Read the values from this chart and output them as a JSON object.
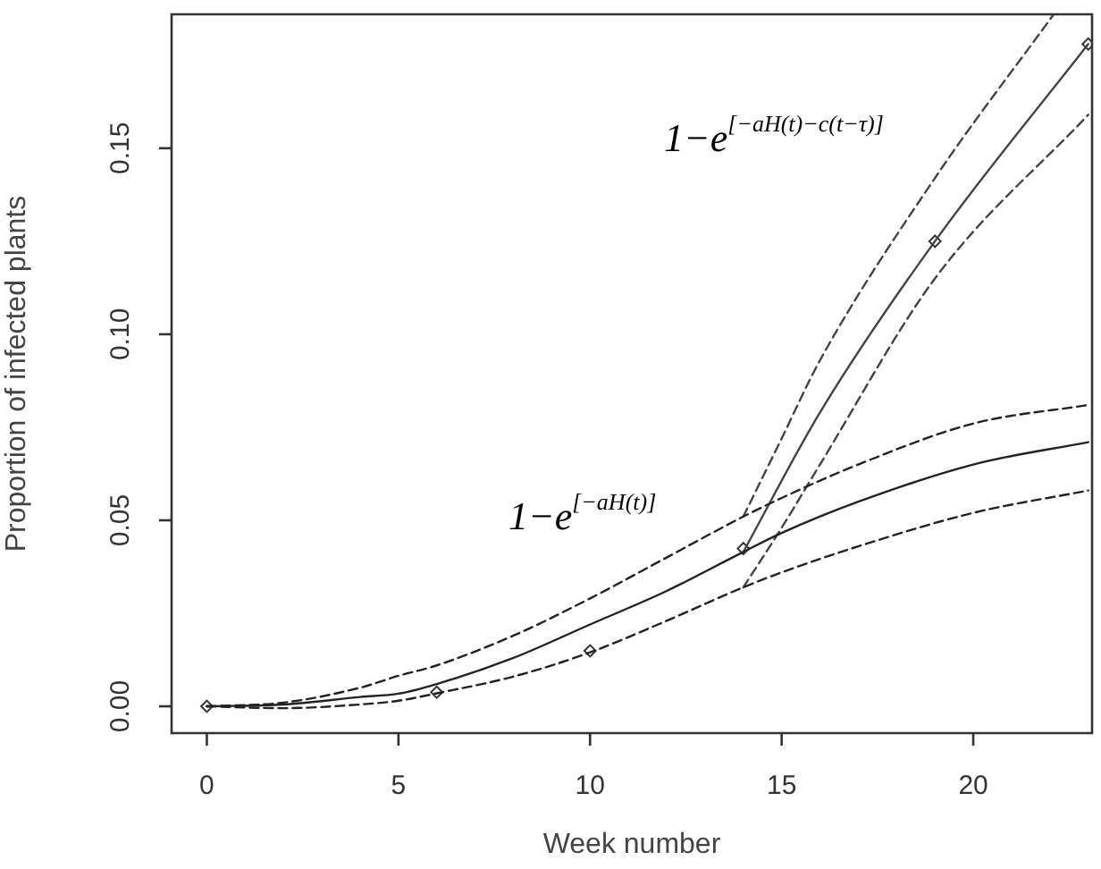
{
  "chart_data": {
    "type": "line",
    "xlabel": "Week number",
    "ylabel": "Proportion of infected plants",
    "xlim": [
      -0.92,
      23.1
    ],
    "ylim": [
      -0.0072,
      0.186
    ],
    "xticks": [
      0,
      5,
      10,
      15,
      20
    ],
    "yticks": [
      {
        "value": 0,
        "label": "0.00"
      },
      {
        "value": 0.05,
        "label": "0.05"
      },
      {
        "value": 0.1,
        "label": "0.10"
      },
      {
        "value": 0.15,
        "label": "0.15"
      }
    ],
    "grid": false,
    "legend": false,
    "series": [
      {
        "color": "#222222",
        "line_style": "solid",
        "x": [
          0,
          2,
          4,
          5,
          6,
          8,
          10,
          12,
          14,
          15,
          17,
          20,
          23
        ],
        "values": [
          0,
          0.0005,
          0.0025,
          0.0034,
          0.006,
          0.013,
          0.022,
          0.031,
          0.0415,
          0.0466,
          0.055,
          0.065,
          0.071
        ]
      },
      {
        "color": "#222222",
        "line_style": "dashed",
        "x": [
          0,
          2,
          4,
          5,
          6,
          8,
          10,
          12,
          14,
          15,
          17,
          20,
          23
        ],
        "values": [
          0,
          0.001,
          0.005,
          0.0082,
          0.011,
          0.019,
          0.029,
          0.04,
          0.051,
          0.056,
          0.065,
          0.076,
          0.081
        ]
      },
      {
        "color": "#222222",
        "line_style": "dashed",
        "x": [
          0,
          2,
          4,
          5,
          6,
          8,
          10,
          12,
          14,
          15,
          17,
          20,
          23
        ],
        "values": [
          0,
          -0.0005,
          0.0005,
          0.0015,
          0.0035,
          0.008,
          0.0145,
          0.023,
          0.032,
          0.036,
          0.043,
          0.052,
          0.058
        ]
      },
      {
        "color": "#444444",
        "line_style": "solid",
        "x": [
          14,
          16,
          19,
          23
        ],
        "values": [
          0.0415,
          0.079,
          0.125,
          0.178
        ]
      },
      {
        "color": "#444444",
        "line_style": "dashed",
        "x": [
          14,
          15,
          16,
          19,
          22.1
        ],
        "values": [
          0.051,
          0.072,
          0.093,
          0.142,
          0.186
        ]
      },
      {
        "color": "#444444",
        "line_style": "dashed",
        "x": [
          14,
          15,
          16,
          19,
          23
        ],
        "values": [
          0.032,
          0.048,
          0.065,
          0.115,
          0.159
        ]
      },
      {
        "type": "scatter",
        "color": "#333333",
        "marker": "diamond",
        "x": [
          0,
          6,
          10,
          14,
          19,
          23
        ],
        "values": [
          0,
          0.0038,
          0.0149,
          0.0424,
          0.125,
          0.178
        ]
      }
    ],
    "annotations": [
      "1−e$^{[−aH(t)−c(t−τ)]}$",
      "1−e$^{[−aH(t)]}$"
    ]
  }
}
